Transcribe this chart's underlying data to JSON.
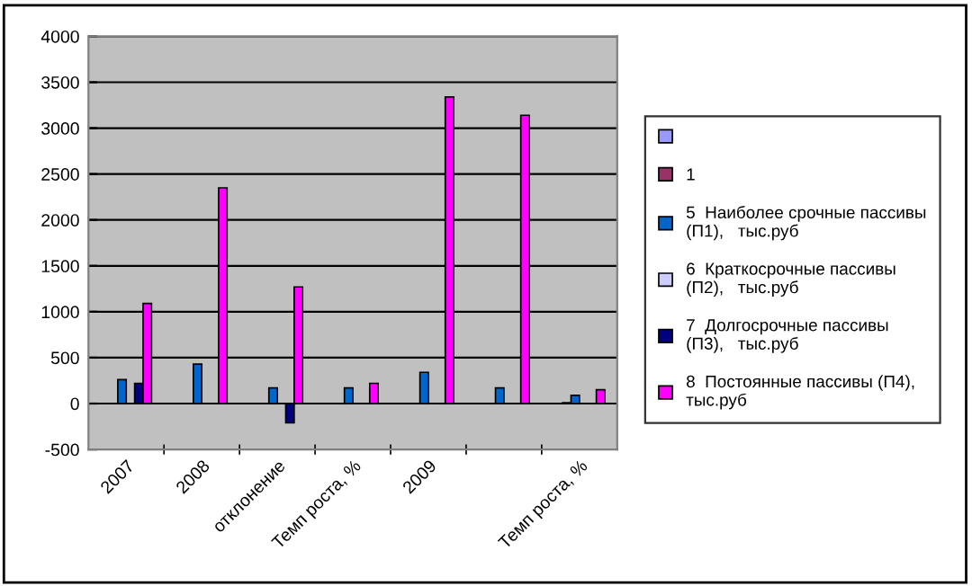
{
  "chart_data": {
    "type": "bar",
    "categories": [
      "2007",
      "2008",
      "отклонение",
      "Темп роста, %",
      "2009",
      null,
      "Темп роста, %"
    ],
    "ylim": [
      -500,
      4000
    ],
    "yticks": [
      -500,
      0,
      500,
      1000,
      1500,
      2000,
      2500,
      3000,
      3500,
      4000
    ],
    "grid": "y",
    "legend": "right",
    "series": [
      {
        "color": "#9999ff",
        "values": [
          null,
          null,
          null,
          null,
          null,
          null,
          null
        ]
      },
      {
        "name": "1",
        "color": "#993366",
        "values": [
          null,
          null,
          null,
          null,
          null,
          null,
          10
        ]
      },
      {
        "name": "5  Наиболее срочные пассивы\n(П1),   тыс.руб",
        "color": "#0066cc",
        "values": [
          260,
          430,
          170,
          170,
          340,
          170,
          90
        ]
      },
      {
        "name": "6  Краткосрочные пассивы\n(П2),   тыс.руб",
        "color": "#ccccff",
        "values": [
          null,
          null,
          null,
          null,
          null,
          null,
          null
        ]
      },
      {
        "name": "7  Долгосрочные пассивы\n(П3),   тыс.руб",
        "color": "#000080",
        "values": [
          220,
          null,
          -210,
          null,
          null,
          null,
          null
        ]
      },
      {
        "name": "8  Постоянные пассивы (П4),\nтыс.руб",
        "color": "#ff00ff",
        "values": [
          1090,
          2350,
          1270,
          220,
          3340,
          3140,
          150
        ]
      }
    ]
  }
}
